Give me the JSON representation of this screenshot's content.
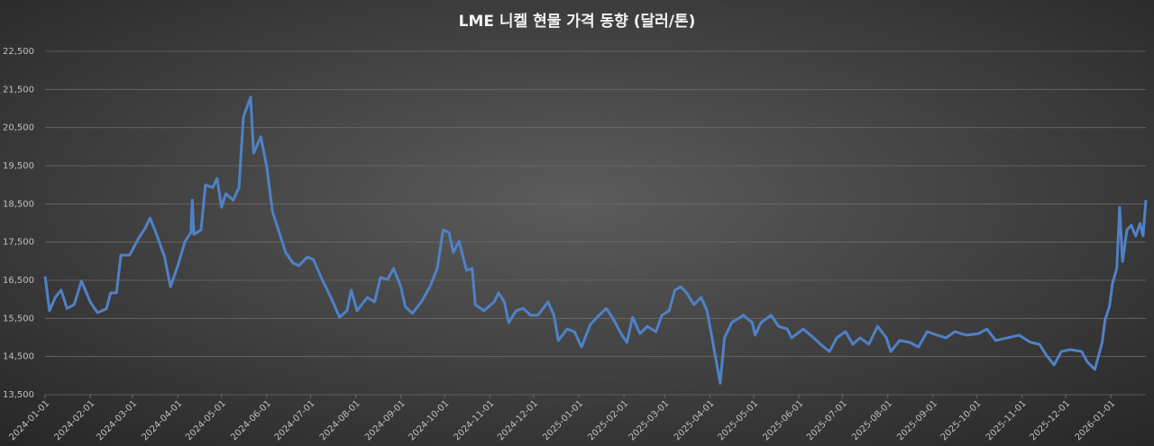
{
  "chart_data": {
    "type": "line",
    "title": "LME 니켈 현물 가격 동향 (달러/톤)",
    "x": [
      "2024-01-01",
      "2024-01-04",
      "2024-01-08",
      "2024-01-12",
      "2024-01-16",
      "2024-01-21",
      "2024-01-26",
      "2024-02-01",
      "2024-02-06",
      "2024-02-12",
      "2024-02-15",
      "2024-02-19",
      "2024-02-22",
      "2024-02-28",
      "2024-03-05",
      "2024-03-10",
      "2024-03-13",
      "2024-03-17",
      "2024-03-23",
      "2024-03-27",
      "2024-04-01",
      "2024-04-06",
      "2024-04-10",
      "2024-04-11",
      "2024-04-12",
      "2024-04-17",
      "2024-04-20",
      "2024-04-25",
      "2024-04-28",
      "2024-05-01",
      "2024-05-04",
      "2024-05-09",
      "2024-05-13",
      "2024-05-16",
      "2024-05-21",
      "2024-05-23",
      "2024-05-28",
      "2024-06-01",
      "2024-06-05",
      "2024-06-09",
      "2024-06-14",
      "2024-06-19",
      "2024-06-23",
      "2024-06-29",
      "2024-07-03",
      "2024-07-09",
      "2024-07-15",
      "2024-07-21",
      "2024-07-26",
      "2024-07-29",
      "2024-08-02",
      "2024-08-09",
      "2024-08-14",
      "2024-08-18",
      "2024-08-23",
      "2024-08-27",
      "2024-09-01",
      "2024-09-04",
      "2024-09-09",
      "2024-09-15",
      "2024-09-21",
      "2024-09-26",
      "2024-09-30",
      "2024-10-04",
      "2024-10-07",
      "2024-10-11",
      "2024-10-16",
      "2024-10-20",
      "2024-10-22",
      "2024-10-28",
      "2024-11-04",
      "2024-11-07",
      "2024-11-11",
      "2024-11-14",
      "2024-11-19",
      "2024-11-24",
      "2024-11-29",
      "2024-12-04",
      "2024-12-11",
      "2024-12-15",
      "2024-12-18",
      "2024-12-24",
      "2024-12-29",
      "2025-01-03",
      "2025-01-09",
      "2025-01-15",
      "2025-01-20",
      "2025-01-25",
      "2025-01-30",
      "2025-02-03",
      "2025-02-07",
      "2025-02-12",
      "2025-02-17",
      "2025-02-23",
      "2025-02-27",
      "2025-03-04",
      "2025-03-08",
      "2025-03-12",
      "2025-03-16",
      "2025-03-21",
      "2025-03-26",
      "2025-03-30",
      "2025-04-03",
      "2025-04-08",
      "2025-04-11",
      "2025-04-16",
      "2025-04-24",
      "2025-04-30",
      "2025-05-02",
      "2025-05-06",
      "2025-05-13",
      "2025-05-18",
      "2025-05-24",
      "2025-05-27",
      "2025-06-04",
      "2025-06-11",
      "2025-06-18",
      "2025-06-22",
      "2025-06-27",
      "2025-07-03",
      "2025-07-08",
      "2025-07-13",
      "2025-07-19",
      "2025-07-25",
      "2025-07-31",
      "2025-08-03",
      "2025-08-09",
      "2025-08-16",
      "2025-08-22",
      "2025-08-28",
      "2025-09-04",
      "2025-09-10",
      "2025-09-16",
      "2025-09-24",
      "2025-10-02",
      "2025-10-08",
      "2025-10-14",
      "2025-10-22",
      "2025-10-30",
      "2025-11-07",
      "2025-11-13",
      "2025-11-18",
      "2025-11-23",
      "2025-11-28",
      "2025-12-04",
      "2025-12-12",
      "2025-12-16",
      "2025-12-21",
      "2025-12-26",
      "2025-12-28",
      "2025-12-31",
      "2026-01-02",
      "2026-01-05",
      "2026-01-07",
      "2026-01-09",
      "2026-01-12",
      "2026-01-15",
      "2026-01-18",
      "2026-01-21",
      "2026-01-23",
      "2026-01-25"
    ],
    "series": [
      {
        "name": "LME 니켈",
        "color": "#4f81c7",
        "values": [
          16600,
          15700,
          16050,
          16240,
          15760,
          15860,
          16480,
          15930,
          15650,
          15750,
          16170,
          16170,
          17160,
          17160,
          17590,
          17890,
          18130,
          17750,
          17110,
          16330,
          16880,
          17520,
          17750,
          18600,
          17700,
          17820,
          19000,
          18930,
          19170,
          18410,
          18770,
          18600,
          18930,
          20770,
          21300,
          19830,
          20260,
          19480,
          18290,
          17820,
          17230,
          16950,
          16880,
          17110,
          17040,
          16520,
          16050,
          15530,
          15700,
          16240,
          15700,
          16050,
          15930,
          16570,
          16520,
          16810,
          16330,
          15810,
          15630,
          15930,
          16330,
          16810,
          17820,
          17750,
          17230,
          17520,
          16760,
          16810,
          15860,
          15700,
          15930,
          16170,
          15930,
          15390,
          15700,
          15760,
          15580,
          15580,
          15930,
          15580,
          14920,
          15220,
          15150,
          14750,
          15340,
          15580,
          15760,
          15460,
          15100,
          14870,
          15530,
          15100,
          15290,
          15150,
          15580,
          15700,
          16240,
          16330,
          16170,
          15860,
          16050,
          15700,
          14870,
          13800,
          14990,
          15390,
          15580,
          15390,
          15060,
          15390,
          15580,
          15290,
          15220,
          14990,
          15220,
          14990,
          14750,
          14630,
          14990,
          15150,
          14820,
          14990,
          14820,
          15290,
          14990,
          14630,
          14920,
          14870,
          14750,
          15150,
          15060,
          14990,
          15150,
          15060,
          15100,
          15220,
          14920,
          14990,
          15060,
          14870,
          14820,
          14520,
          14280,
          14630,
          14680,
          14630,
          14350,
          14160,
          14870,
          15460,
          15810,
          16400,
          16810,
          18410,
          16990,
          17820,
          17940,
          17660,
          17990,
          17660,
          18600
        ]
      }
    ],
    "xlim": [
      "2024-01-01",
      "2026-01-25"
    ],
    "xticks": [
      "2024-01-01",
      "2024-02-01",
      "2024-03-01",
      "2024-04-01",
      "2024-05-01",
      "2024-06-01",
      "2024-07-01",
      "2024-08-01",
      "2024-09-01",
      "2024-10-01",
      "2024-11-01",
      "2024-12-01",
      "2025-01-01",
      "2025-02-01",
      "2025-03-01",
      "2025-04-01",
      "2025-05-01",
      "2025-06-01",
      "2025-07-01",
      "2025-08-01",
      "2025-09-01",
      "2025-10-01",
      "2025-11-01",
      "2025-12-01",
      "2026-01-01"
    ],
    "ylim": [
      13500,
      22500
    ],
    "yticks": [
      {
        "value": 13500,
        "label": "13,500"
      },
      {
        "value": 14500,
        "label": "14,500"
      },
      {
        "value": 15500,
        "label": "15,500"
      },
      {
        "value": 16500,
        "label": "16,500"
      },
      {
        "value": 17500,
        "label": "17,500"
      },
      {
        "value": 18500,
        "label": "18,500"
      },
      {
        "value": 19500,
        "label": "19,500"
      },
      {
        "value": 20500,
        "label": "20,500"
      },
      {
        "value": 21500,
        "label": "21,500"
      },
      {
        "value": 22500,
        "label": "22,500"
      }
    ],
    "grid": true
  }
}
